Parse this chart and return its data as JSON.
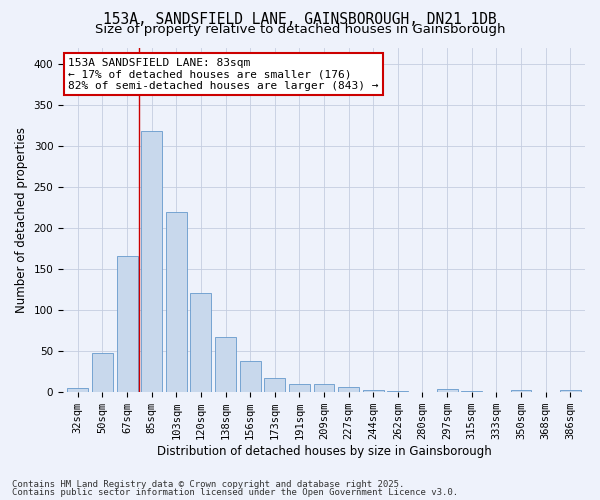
{
  "title_line1": "153A, SANDSFIELD LANE, GAINSBOROUGH, DN21 1DB",
  "title_line2": "Size of property relative to detached houses in Gainsborough",
  "xlabel": "Distribution of detached houses by size in Gainsborough",
  "ylabel": "Number of detached properties",
  "categories": [
    "32sqm",
    "50sqm",
    "67sqm",
    "85sqm",
    "103sqm",
    "120sqm",
    "138sqm",
    "156sqm",
    "173sqm",
    "191sqm",
    "209sqm",
    "227sqm",
    "244sqm",
    "262sqm",
    "280sqm",
    "297sqm",
    "315sqm",
    "333sqm",
    "350sqm",
    "368sqm",
    "386sqm"
  ],
  "values": [
    4,
    47,
    165,
    318,
    219,
    120,
    67,
    37,
    17,
    10,
    10,
    6,
    2,
    1,
    0,
    3,
    1,
    0,
    2,
    0,
    2
  ],
  "bar_color": "#c8d8ec",
  "bar_edge_color": "#6699cc",
  "background_color": "#eef2fb",
  "grid_color": "#c5cde0",
  "annotation_text": "153A SANDSFIELD LANE: 83sqm\n← 17% of detached houses are smaller (176)\n82% of semi-detached houses are larger (843) →",
  "annotation_box_color": "#ffffff",
  "annotation_box_edge": "#cc0000",
  "vline_color": "#cc0000",
  "vline_x_index": 2.5,
  "ylim": [
    0,
    420
  ],
  "yticks": [
    0,
    50,
    100,
    150,
    200,
    250,
    300,
    350,
    400
  ],
  "footer_line1": "Contains HM Land Registry data © Crown copyright and database right 2025.",
  "footer_line2": "Contains public sector information licensed under the Open Government Licence v3.0.",
  "title_fontsize": 10.5,
  "subtitle_fontsize": 9.5,
  "label_fontsize": 8.5,
  "tick_fontsize": 7.5,
  "annotation_fontsize": 8,
  "footer_fontsize": 6.5
}
